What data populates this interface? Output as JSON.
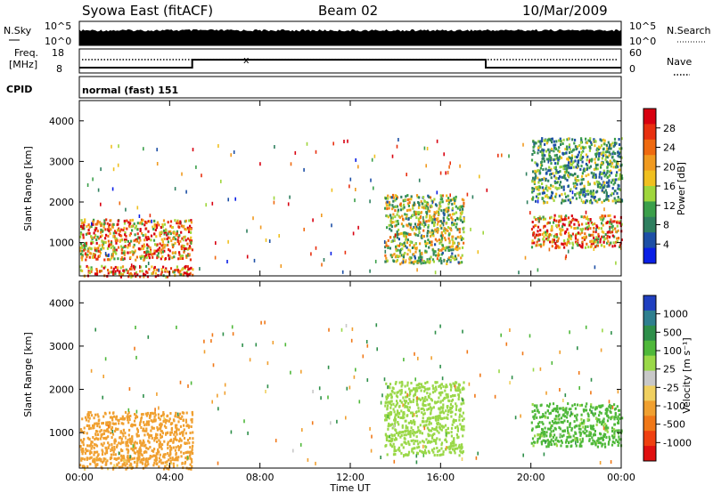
{
  "header": {
    "station": "Syowa East (fitACF)",
    "beam": "Beam 02",
    "date": "10/Mar/2009"
  },
  "noise_panel": {
    "left_label": "N.Sky",
    "right_label": "N.Search",
    "tick_top": "10^5",
    "tick_bottom": "10^0"
  },
  "freq_panel": {
    "left_label_1": "Freq.",
    "left_label_2": "[MHz]",
    "right_label": "Nave",
    "left_ticks": [
      "18",
      "8"
    ],
    "right_ticks": [
      "60",
      "0"
    ]
  },
  "cpid": {
    "label": "CPID",
    "value": "normal (fast) 151"
  },
  "axes": {
    "ylabel": "Slant Range [km]",
    "xlabel": "Time UT",
    "yticks": [
      "1000",
      "2000",
      "3000",
      "4000"
    ],
    "xticks": [
      "00:00",
      "04:00",
      "08:00",
      "12:00",
      "16:00",
      "20:00",
      "00:00"
    ]
  },
  "power_colorbar": {
    "label": "Power [dB]",
    "ticks": [
      "4",
      "8",
      "12",
      "16",
      "20",
      "24",
      "28"
    ],
    "colors": [
      "#0a1fe6",
      "#1d4fa6",
      "#2f7f5f",
      "#3b9f4a",
      "#9fd63c",
      "#f0c020",
      "#f09a20",
      "#ef6a10",
      "#e83010",
      "#d80010"
    ]
  },
  "velocity_colorbar": {
    "label": "Velocity [m s⁻¹]",
    "ticks": [
      "1000",
      "500",
      "100",
      "25",
      "-25",
      "-100",
      "-500",
      "-1000"
    ],
    "colors": [
      "#2040c0",
      "#2f7f8f",
      "#2e8f4a",
      "#4fb83a",
      "#9ad848",
      "#c8c8c8",
      "#f0d060",
      "#f0a030",
      "#f07818",
      "#ef4010",
      "#e01010"
    ]
  },
  "chart_data": [
    {
      "type": "line",
      "title": "Syowa East (fitACF)",
      "subtitle": "Beam 02",
      "xlabel": "",
      "ylabel": "N.Sky",
      "ylim_label": [
        "10^0",
        "10^5"
      ],
      "x": [
        "00:00",
        "04:00",
        "08:00",
        "12:00",
        "16:00",
        "20:00",
        "00:00"
      ],
      "series": [
        {
          "name": "N.Sky",
          "values": [
            3.0,
            3.2,
            3.1,
            3.0,
            3.1,
            3.3,
            3.2
          ]
        }
      ]
    },
    {
      "type": "line",
      "xlabel": "",
      "ylabel": "Freq. [MHz]",
      "ylim": [
        8,
        18
      ],
      "x": [
        "00:00",
        "04:00",
        "05:00",
        "08:00",
        "12:00",
        "16:00",
        "18:00",
        "20:00",
        "00:00"
      ],
      "series": [
        {
          "name": "Freq.",
          "values": [
            10.5,
            10.5,
            14.2,
            14.2,
            14.2,
            14.2,
            10.5,
            10.5,
            10.5
          ]
        },
        {
          "name": "Nave",
          "values": [
            41,
            41,
            41,
            41,
            41,
            41,
            41,
            41,
            41
          ]
        }
      ]
    },
    {
      "type": "heatmap",
      "title": "Power [dB]",
      "xlabel": "",
      "ylabel": "Slant Range [km]",
      "xlim": [
        "00:00",
        "00:00"
      ],
      "ylim": [
        180,
        4500
      ],
      "colorbar_range": [
        0,
        30
      ],
      "regions": [
        {
          "t_start": 0.0,
          "t_end": 5.0,
          "r_start": 600,
          "r_end": 1600,
          "level": 20
        },
        {
          "t_start": 0.0,
          "t_end": 5.0,
          "r_start": 180,
          "r_end": 450,
          "level": 22
        },
        {
          "t_start": 13.5,
          "t_end": 17.0,
          "r_start": 500,
          "r_end": 2200,
          "level": 14
        },
        {
          "t_start": 20.0,
          "t_end": 24.0,
          "r_start": 900,
          "r_end": 1700,
          "level": 21
        },
        {
          "t_start": 20.0,
          "t_end": 24.0,
          "r_start": 2000,
          "r_end": 3600,
          "level": 10
        }
      ]
    },
    {
      "type": "heatmap",
      "title": "Velocity [m s⁻¹]",
      "xlabel": "Time UT",
      "ylabel": "Slant Range [km]",
      "xlim": [
        "00:00",
        "00:00"
      ],
      "ylim": [
        180,
        4500
      ],
      "colorbar_range": [
        -1000,
        1000
      ],
      "regions": [
        {
          "t_start": 0.0,
          "t_end": 5.0,
          "r_start": 400,
          "r_end": 1500,
          "level": -250
        },
        {
          "t_start": 0.0,
          "t_end": 5.0,
          "r_start": 180,
          "r_end": 450,
          "level": -150
        },
        {
          "t_start": 13.5,
          "t_end": 17.0,
          "r_start": 500,
          "r_end": 2200,
          "level": 60
        },
        {
          "t_start": 20.0,
          "t_end": 24.0,
          "r_start": 700,
          "r_end": 1700,
          "level": 150
        }
      ]
    }
  ]
}
